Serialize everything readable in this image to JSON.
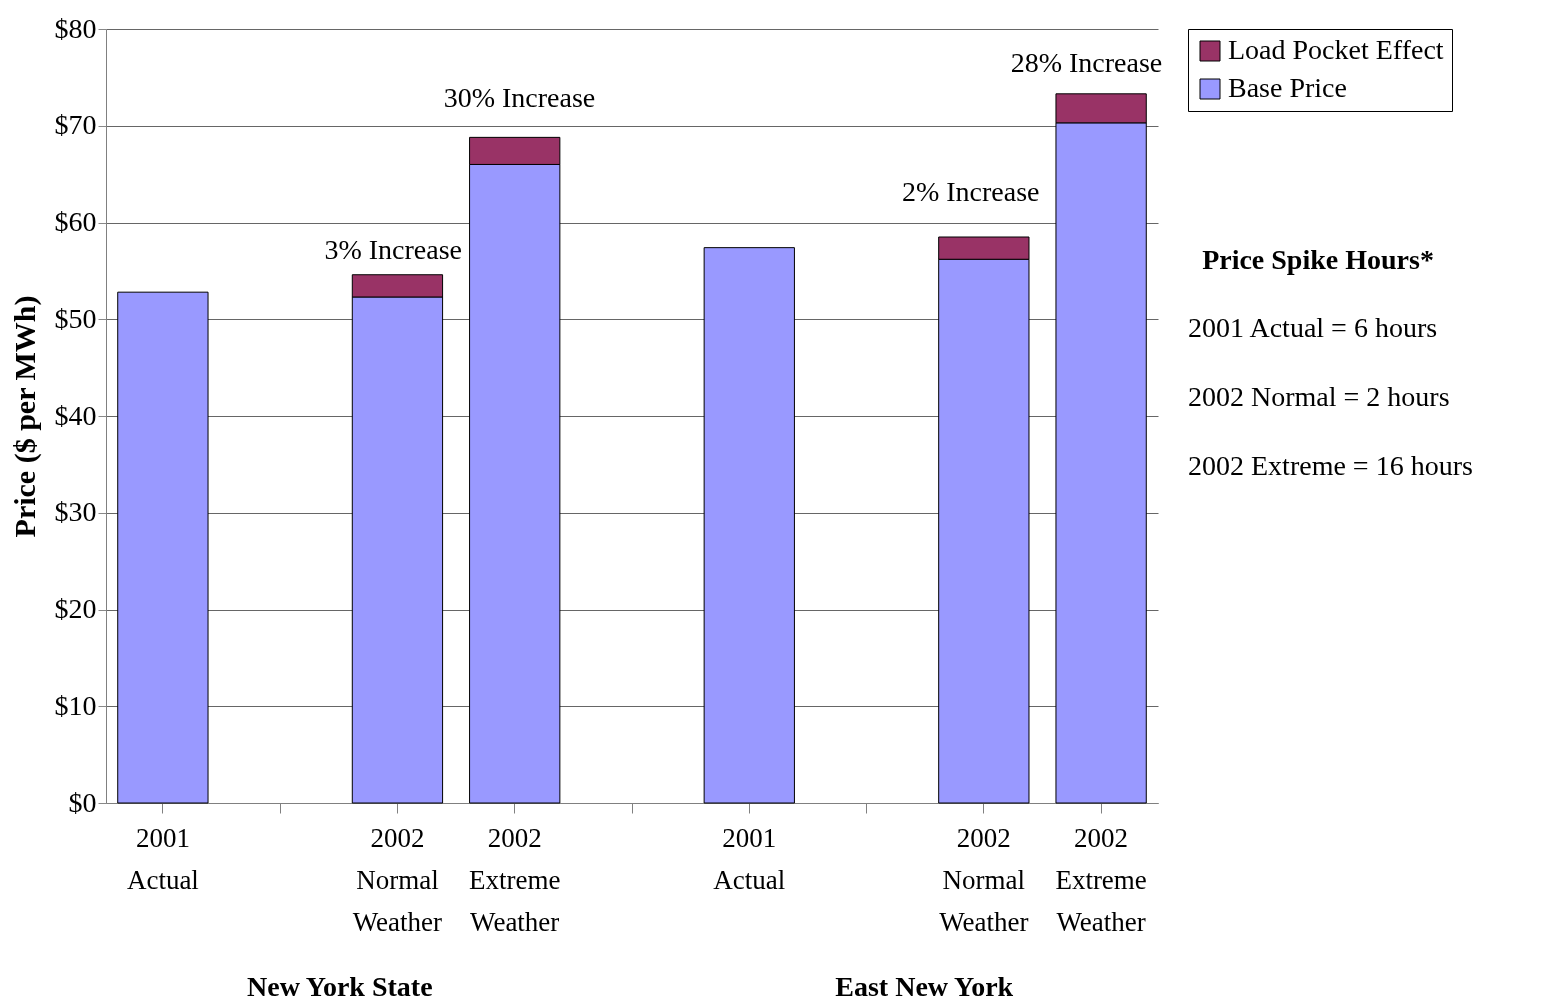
{
  "chart_data": {
    "type": "bar",
    "stacked": true,
    "ylabel": "Price ($ per MWh)",
    "categories": [
      "2001\nActual",
      null,
      "2002\nNormal\nWeather",
      "2002\nExtreme\nWeather",
      null,
      "2001\nActual",
      null,
      "2002\nNormal\nWeather",
      "2002\nExtreme\nWeather"
    ],
    "series": [
      {
        "name": "Base Price",
        "color": "#9999ff",
        "values": [
          52.8,
          null,
          52.3,
          66.0,
          null,
          57.4,
          null,
          56.2,
          70.3
        ]
      },
      {
        "name": "Load Pocket Effect",
        "color": "#993366",
        "values": [
          null,
          null,
          2.3,
          2.8,
          null,
          null,
          null,
          2.3,
          3.0
        ]
      }
    ],
    "ylim": [
      0,
      80
    ],
    "yticks": [
      {
        "value": 0,
        "label": "$0"
      },
      {
        "value": 10,
        "label": "$10"
      },
      {
        "value": 20,
        "label": "$20"
      },
      {
        "value": 30,
        "label": "$30"
      },
      {
        "value": 40,
        "label": "$40"
      },
      {
        "value": 50,
        "label": "$50"
      },
      {
        "value": 60,
        "label": "$60"
      },
      {
        "value": 70,
        "label": "$70"
      },
      {
        "value": 80,
        "label": "$80"
      }
    ],
    "grid": "y",
    "legend": "top right",
    "annotations": [
      "New York State",
      "East New York",
      "Price Spike Hours*",
      "2001 Actual = 6 hours",
      "2002 Normal = 2 hours",
      "2002 Extreme = 16 hours",
      "3% Increase",
      "30% Increase",
      "2% Increase",
      "28% Increase"
    ]
  }
}
